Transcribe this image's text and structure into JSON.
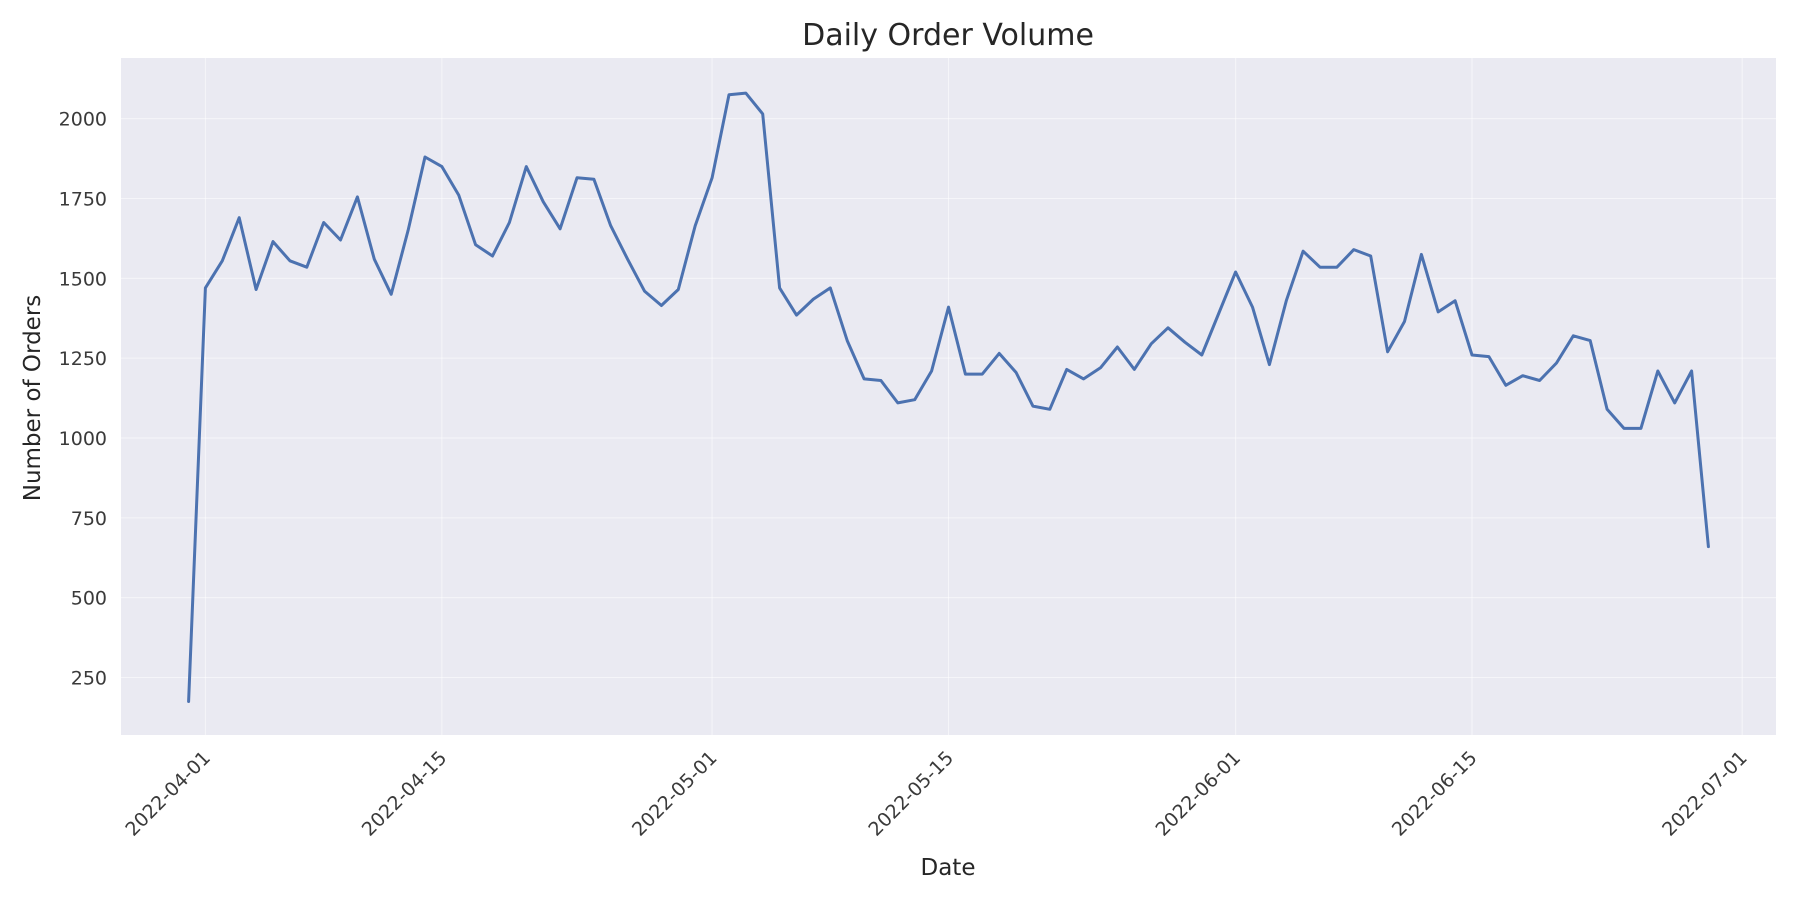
{
  "chart_data": {
    "type": "line",
    "title": "Daily Order Volume",
    "xlabel": "Date",
    "ylabel": "Number of Orders",
    "xlim": [
      "2022-03-27",
      "2022-07-03"
    ],
    "ylim": [
      70,
      2190
    ],
    "grid": true,
    "xticks": [
      "2022-04-01",
      "2022-04-15",
      "2022-05-01",
      "2022-05-15",
      "2022-06-01",
      "2022-06-15",
      "2022-07-01"
    ],
    "yticks": [
      250,
      500,
      750,
      1000,
      1250,
      1500,
      1750,
      2000
    ],
    "series": [
      {
        "color": "#4c72b0",
        "x": [
          "2022-03-31",
          "2022-04-01",
          "2022-04-02",
          "2022-04-03",
          "2022-04-04",
          "2022-04-05",
          "2022-04-06",
          "2022-04-07",
          "2022-04-08",
          "2022-04-09",
          "2022-04-10",
          "2022-04-11",
          "2022-04-12",
          "2022-04-13",
          "2022-04-14",
          "2022-04-15",
          "2022-04-16",
          "2022-04-17",
          "2022-04-18",
          "2022-04-19",
          "2022-04-20",
          "2022-04-21",
          "2022-04-22",
          "2022-04-23",
          "2022-04-24",
          "2022-04-25",
          "2022-04-26",
          "2022-04-27",
          "2022-04-28",
          "2022-04-29",
          "2022-04-30",
          "2022-05-01",
          "2022-05-02",
          "2022-05-03",
          "2022-05-04",
          "2022-05-05",
          "2022-05-06",
          "2022-05-07",
          "2022-05-08",
          "2022-05-09",
          "2022-05-10",
          "2022-05-11",
          "2022-05-12",
          "2022-05-13",
          "2022-05-14",
          "2022-05-15",
          "2022-05-16",
          "2022-05-17",
          "2022-05-18",
          "2022-05-19",
          "2022-05-20",
          "2022-05-21",
          "2022-05-22",
          "2022-05-23",
          "2022-05-24",
          "2022-05-25",
          "2022-05-26",
          "2022-05-27",
          "2022-05-28",
          "2022-05-29",
          "2022-05-30",
          "2022-05-31",
          "2022-06-01",
          "2022-06-02",
          "2022-06-03",
          "2022-06-04",
          "2022-06-05",
          "2022-06-06",
          "2022-06-07",
          "2022-06-08",
          "2022-06-09",
          "2022-06-10",
          "2022-06-11",
          "2022-06-12",
          "2022-06-13",
          "2022-06-14",
          "2022-06-15",
          "2022-06-16",
          "2022-06-17",
          "2022-06-18",
          "2022-06-19",
          "2022-06-20",
          "2022-06-21",
          "2022-06-22",
          "2022-06-23",
          "2022-06-24",
          "2022-06-25",
          "2022-06-26",
          "2022-06-27",
          "2022-06-28",
          "2022-06-29"
        ],
        "y": [
          175,
          1470,
          1555,
          1690,
          1465,
          1615,
          1555,
          1535,
          1675,
          1620,
          1755,
          1560,
          1450,
          1650,
          1880,
          1850,
          1760,
          1605,
          1570,
          1675,
          1850,
          1740,
          1655,
          1815,
          1810,
          1665,
          1560,
          1460,
          1415,
          1465,
          1665,
          1815,
          2075,
          2080,
          2015,
          1470,
          1385,
          1435,
          1470,
          1305,
          1185,
          1180,
          1110,
          1120,
          1210,
          1410,
          1200,
          1200,
          1265,
          1205,
          1100,
          1090,
          1215,
          1185,
          1220,
          1285,
          1215,
          1295,
          1345,
          1300,
          1260,
          1390,
          1520,
          1410,
          1230,
          1430,
          1585,
          1535,
          1535,
          1590,
          1570,
          1270,
          1365,
          1575,
          1395,
          1430,
          1260,
          1255,
          1165,
          1195,
          1180,
          1235,
          1320,
          1305,
          1090,
          1030,
          1030,
          1210,
          1110,
          1210,
          660
        ]
      }
    ]
  }
}
